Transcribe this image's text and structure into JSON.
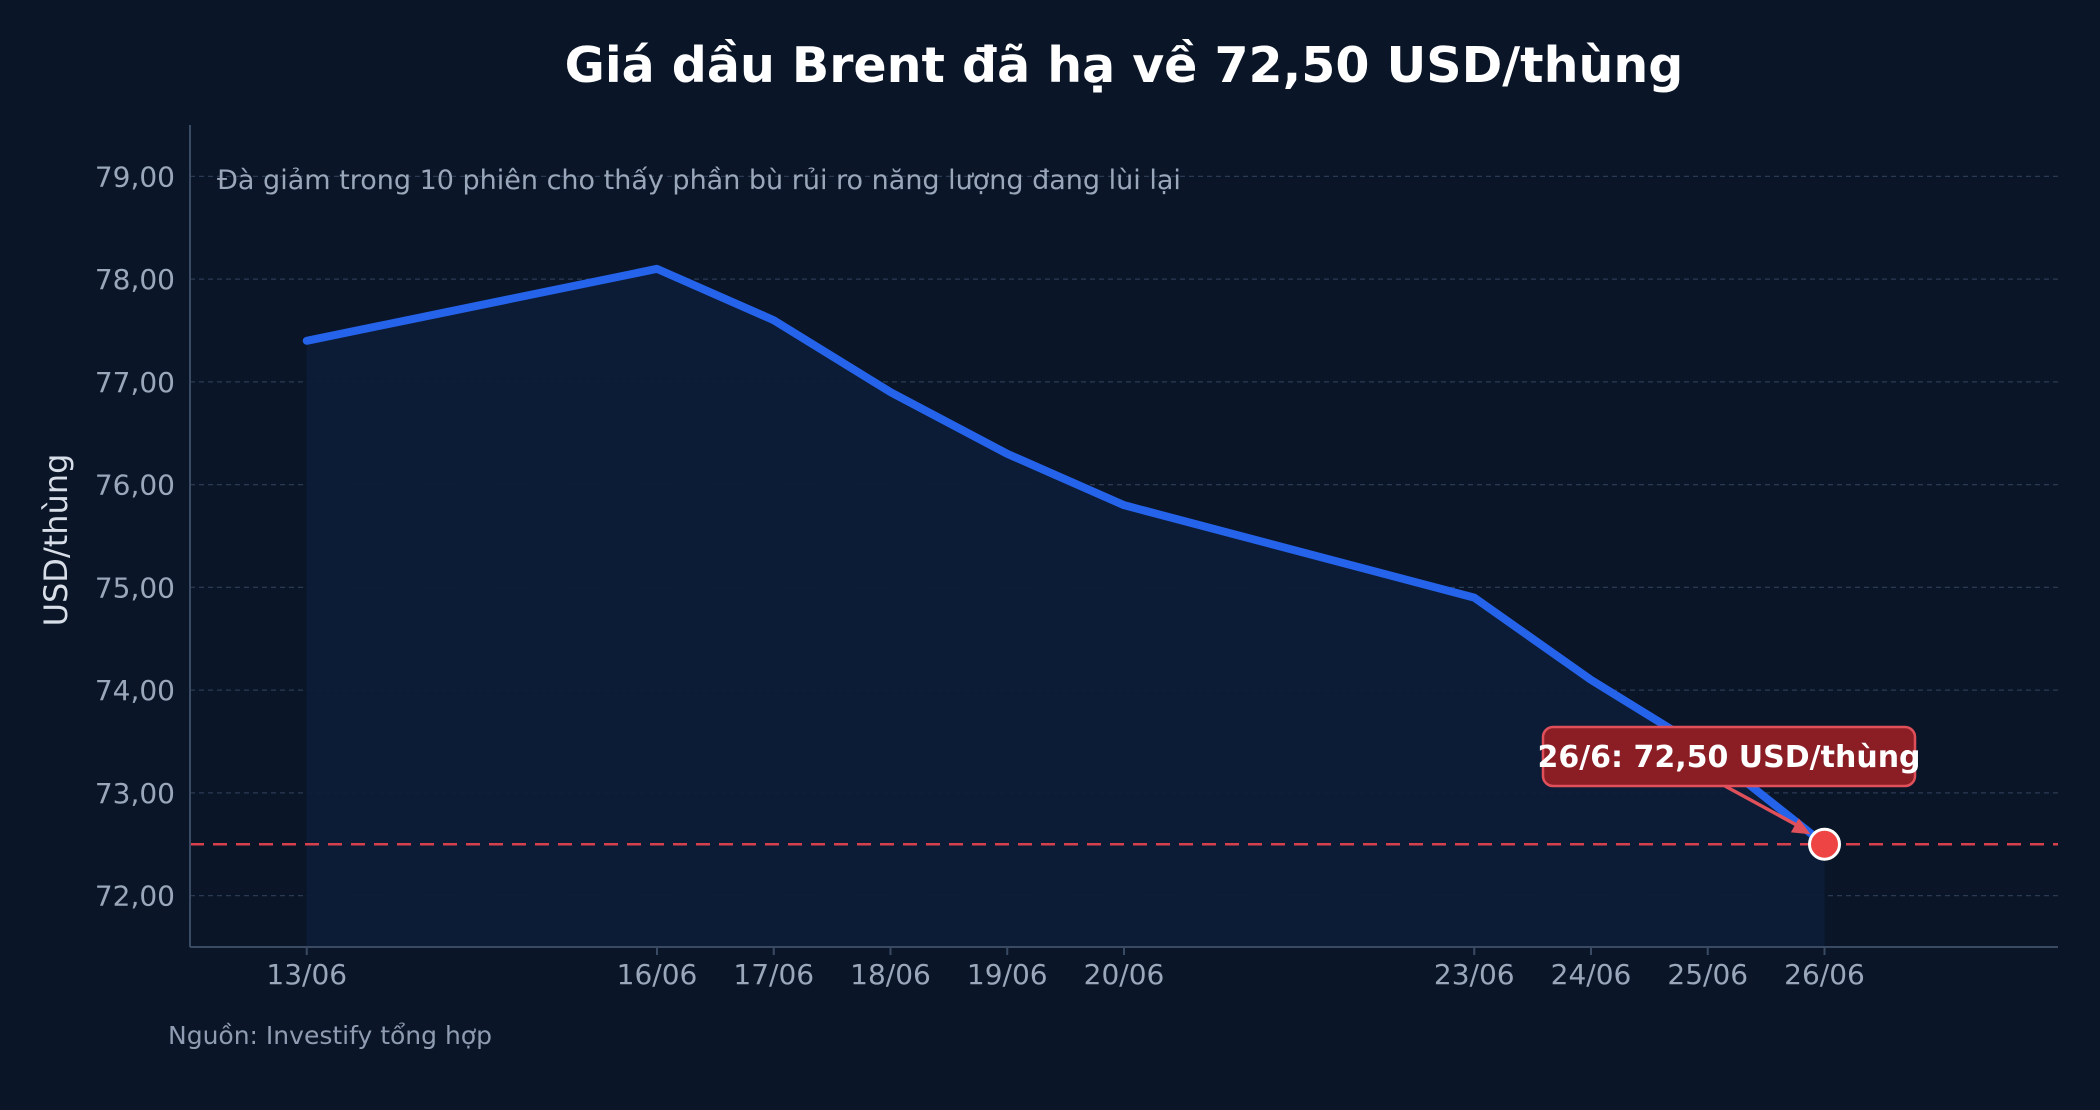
{
  "chart_data": {
    "type": "line",
    "title": "Giá dầu Brent đã hạ về 72,50 USD/thùng",
    "subtitle": "Đà giảm trong 10 phiên cho thấy phần bù rủi ro năng lượng đang lùi lại",
    "ylabel": "USD/thùng",
    "xlabel": "",
    "source": "Nguồn: Investify tổng hợp",
    "x_dates": [
      "2025-06-13",
      "2025-06-16",
      "2025-06-17",
      "2025-06-18",
      "2025-06-19",
      "2025-06-20",
      "2025-06-23",
      "2025-06-24",
      "2025-06-25",
      "2025-06-26"
    ],
    "categories": [
      "13/06",
      "16/06",
      "17/06",
      "18/06",
      "19/06",
      "20/06",
      "23/06",
      "24/06",
      "25/06",
      "26/06"
    ],
    "series": [
      {
        "values": [
          77.4,
          78.1,
          77.6,
          76.9,
          76.3,
          75.8,
          74.9,
          74.1,
          73.4,
          72.5
        ]
      }
    ],
    "ylim": [
      71.5,
      79.5
    ],
    "xlim": [
      "2025-06-12",
      "2025-06-28"
    ],
    "yticks": [
      72,
      73,
      74,
      75,
      76,
      77,
      78,
      79
    ],
    "ytick_labels": [
      "72,00",
      "73,00",
      "74,00",
      "75,00",
      "76,00",
      "77,00",
      "78,00",
      "79,00"
    ],
    "reference_line": {
      "y": 72.5,
      "style": "dashed"
    },
    "annotation": {
      "text": "26/6: 72,50 USD/thùng",
      "x": "2025-06-26",
      "y": 72.5
    },
    "grid": true,
    "colors": {
      "background": "#0a1628",
      "line": "#2563eb",
      "area": "#0d1c38",
      "reference": "#d6404c",
      "marker": "#ef4444",
      "annotation_bg": "#8b1d24",
      "annotation_border": "#e0505a",
      "grid": "#2a3a52",
      "axis": "#3a4a62"
    }
  }
}
